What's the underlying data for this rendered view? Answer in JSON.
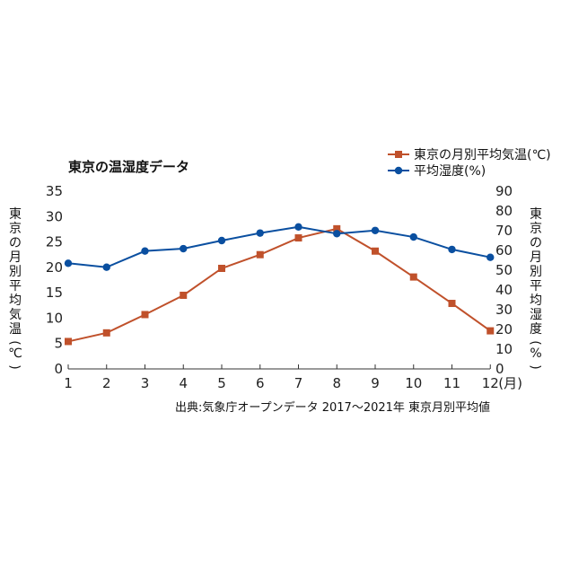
{
  "chart_data": {
    "type": "line",
    "title": "東京の温湿度データ",
    "categories": [
      "1",
      "2",
      "3",
      "4",
      "5",
      "6",
      "7",
      "8",
      "9",
      "10",
      "11",
      "12"
    ],
    "x_unit": "(月)",
    "ylabel_left": "東京の月別平均気温(℃)",
    "ylabel_right": "東京の月別平均湿度(%)",
    "ylim_left": [
      0,
      35
    ],
    "ylim_right": [
      0,
      90
    ],
    "yticks_left": [
      "0",
      "5",
      "10",
      "15",
      "20",
      "25",
      "30",
      "35"
    ],
    "yticks_right": [
      "0",
      "10",
      "20",
      "30",
      "40",
      "50",
      "60",
      "70",
      "80",
      "90"
    ],
    "series": [
      {
        "name": "東京の月別平均気温(℃)",
        "axis": "left",
        "color": "#c0512b",
        "marker": "square",
        "values": [
          5.4,
          7.1,
          10.7,
          14.5,
          19.8,
          22.5,
          25.8,
          27.6,
          23.2,
          18.1,
          12.9,
          7.5
        ]
      },
      {
        "name": "平均湿度(%)",
        "axis": "right",
        "color": "#0a4fa0",
        "marker": "circle",
        "values": [
          53.5,
          51.5,
          59.7,
          60.9,
          65.0,
          68.8,
          71.9,
          68.5,
          70.1,
          66.8,
          60.5,
          56.5
        ]
      }
    ],
    "legend_position": "top-right",
    "grid": false,
    "source": "出典:気象庁オープンデータ 2017〜2021年 東京月別平均値"
  }
}
